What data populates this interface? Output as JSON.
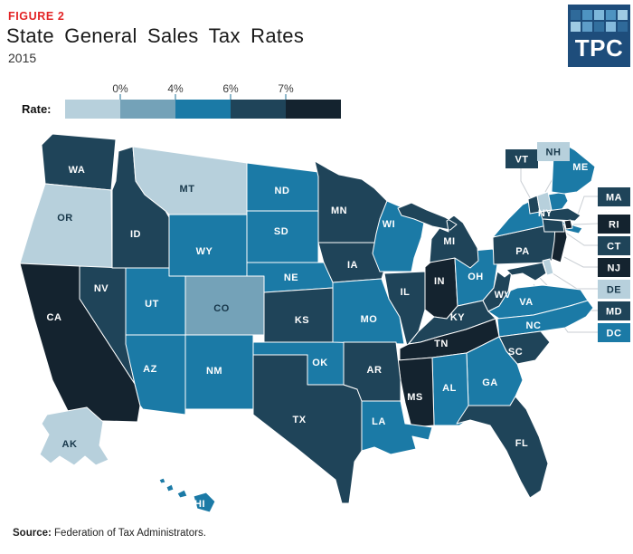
{
  "figure_label": "FIGURE 2",
  "title": "State General Sales Tax Rates",
  "subtitle": "2015",
  "logo": {
    "text": "TPC",
    "bg": "#1e4d7b",
    "squares": [
      "#2f6a9a",
      "#4e93c1",
      "#7db7da",
      "#4e93c1",
      "#9fcbe3",
      "#9fcbe3",
      "#5e9dc8",
      "#326f9e",
      "#85badc",
      "#2f6a9a"
    ]
  },
  "legend": {
    "label": "Rate:",
    "tick_labels": [
      "0%",
      "4%",
      "6%",
      "7%"
    ]
  },
  "source": {
    "label": "Source:",
    "text": "Federation of Tax Administrators."
  },
  "chart_data": {
    "type": "choropleth",
    "region": "United States",
    "title": "State General Sales Tax Rates",
    "year": "2015",
    "legend_label": "Rate:",
    "bins": [
      "0%",
      "0-4%",
      "4-6%",
      "6-7%",
      "7%+"
    ],
    "bin_colors": [
      "#b7d0dc",
      "#74a2b8",
      "#1b7aa6",
      "#1f4459",
      "#14232f"
    ],
    "legend_tick_labels": [
      "0%",
      "4%",
      "6%",
      "7%"
    ],
    "label_color_dark": "#17374a",
    "label_color_light": "#ffffff",
    "boxed_labels": [
      "VT",
      "NH",
      "MA",
      "RI",
      "CT",
      "NJ",
      "DE",
      "MD",
      "DC"
    ],
    "states": [
      {
        "abbr": "WA",
        "bin": "6-7%"
      },
      {
        "abbr": "OR",
        "bin": "0%"
      },
      {
        "abbr": "CA",
        "bin": "7%+"
      },
      {
        "abbr": "NV",
        "bin": "6-7%"
      },
      {
        "abbr": "ID",
        "bin": "6-7%"
      },
      {
        "abbr": "MT",
        "bin": "0%"
      },
      {
        "abbr": "WY",
        "bin": "4-6%"
      },
      {
        "abbr": "UT",
        "bin": "4-6%"
      },
      {
        "abbr": "CO",
        "bin": "0-4%"
      },
      {
        "abbr": "AZ",
        "bin": "4-6%"
      },
      {
        "abbr": "NM",
        "bin": "4-6%"
      },
      {
        "abbr": "ND",
        "bin": "4-6%"
      },
      {
        "abbr": "SD",
        "bin": "4-6%"
      },
      {
        "abbr": "NE",
        "bin": "4-6%"
      },
      {
        "abbr": "KS",
        "bin": "6-7%"
      },
      {
        "abbr": "OK",
        "bin": "4-6%"
      },
      {
        "abbr": "TX",
        "bin": "6-7%"
      },
      {
        "abbr": "MN",
        "bin": "6-7%"
      },
      {
        "abbr": "IA",
        "bin": "6-7%"
      },
      {
        "abbr": "MO",
        "bin": "4-6%"
      },
      {
        "abbr": "WI",
        "bin": "4-6%"
      },
      {
        "abbr": "IL",
        "bin": "6-7%"
      },
      {
        "abbr": "IN",
        "bin": "7%+"
      },
      {
        "abbr": "OH",
        "bin": "4-6%"
      },
      {
        "abbr": "MI",
        "bin": "6-7%"
      },
      {
        "abbr": "KY",
        "bin": "6-7%"
      },
      {
        "abbr": "TN",
        "bin": "7%+"
      },
      {
        "abbr": "WV",
        "bin": "6-7%"
      },
      {
        "abbr": "VA",
        "bin": "4-6%"
      },
      {
        "abbr": "NC",
        "bin": "4-6%"
      },
      {
        "abbr": "SC",
        "bin": "6-7%"
      },
      {
        "abbr": "GA",
        "bin": "4-6%"
      },
      {
        "abbr": "AL",
        "bin": "4-6%"
      },
      {
        "abbr": "MS",
        "bin": "7%+"
      },
      {
        "abbr": "AR",
        "bin": "6-7%"
      },
      {
        "abbr": "LA",
        "bin": "4-6%"
      },
      {
        "abbr": "FL",
        "bin": "6-7%"
      },
      {
        "abbr": "PA",
        "bin": "6-7%"
      },
      {
        "abbr": "NY",
        "bin": "4-6%"
      },
      {
        "abbr": "NJ",
        "bin": "7%+"
      },
      {
        "abbr": "MD",
        "bin": "6-7%"
      },
      {
        "abbr": "DE",
        "bin": "0%"
      },
      {
        "abbr": "VT",
        "bin": "6-7%"
      },
      {
        "abbr": "NH",
        "bin": "0%"
      },
      {
        "abbr": "ME",
        "bin": "4-6%"
      },
      {
        "abbr": "MA",
        "bin": "6-7%"
      },
      {
        "abbr": "RI",
        "bin": "7%+"
      },
      {
        "abbr": "CT",
        "bin": "6-7%"
      },
      {
        "abbr": "DC",
        "bin": "4-6%"
      },
      {
        "abbr": "AK",
        "bin": "0%"
      },
      {
        "abbr": "HI",
        "bin": "4-6%"
      }
    ]
  }
}
